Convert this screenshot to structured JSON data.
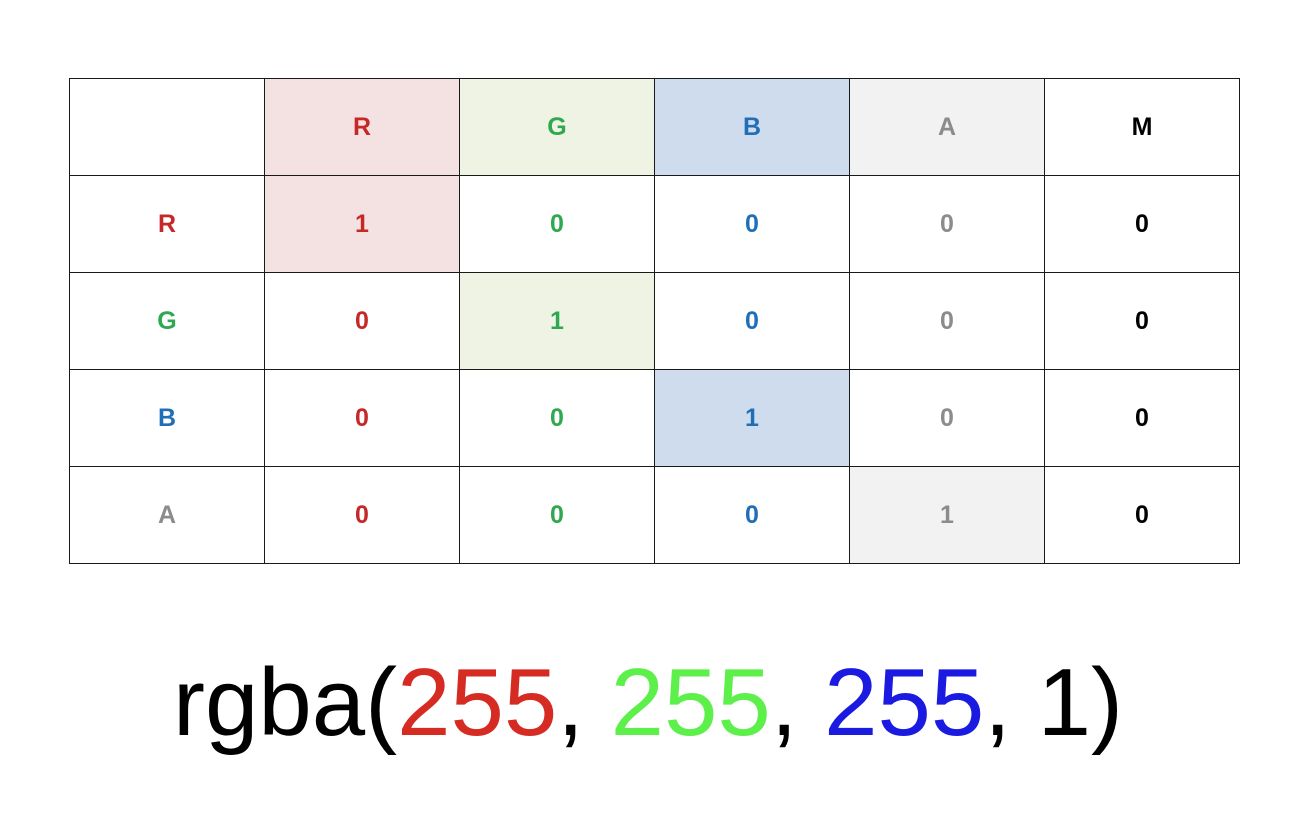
{
  "matrix": {
    "corner": "",
    "columns": [
      {
        "label": "R",
        "channel": "r"
      },
      {
        "label": "G",
        "channel": "g"
      },
      {
        "label": "B",
        "channel": "b"
      },
      {
        "label": "A",
        "channel": "a"
      },
      {
        "label": "M",
        "channel": "m"
      }
    ],
    "rows": [
      {
        "label": "R",
        "values": [
          "1",
          "0",
          "0",
          "0",
          "0"
        ]
      },
      {
        "label": "G",
        "values": [
          "0",
          "1",
          "0",
          "0",
          "0"
        ]
      },
      {
        "label": "B",
        "values": [
          "0",
          "0",
          "1",
          "0",
          "0"
        ]
      },
      {
        "label": "A",
        "values": [
          "0",
          "0",
          "0",
          "1",
          "0"
        ]
      }
    ]
  },
  "formula": {
    "prefix": "rgba(",
    "r": "255",
    "sep1": ", ",
    "g": "255",
    "sep2": ", ",
    "b": "255",
    "sep3": ", ",
    "a": "1",
    "suffix": ")"
  },
  "colors": {
    "red": "#c62828",
    "green": "#2fa84f",
    "blue": "#1f6fb8",
    "alpha_gray": "#8c8c8c",
    "formula_red": "#d62b22",
    "formula_green": "#5df04a",
    "formula_blue": "#1a1ae0"
  }
}
